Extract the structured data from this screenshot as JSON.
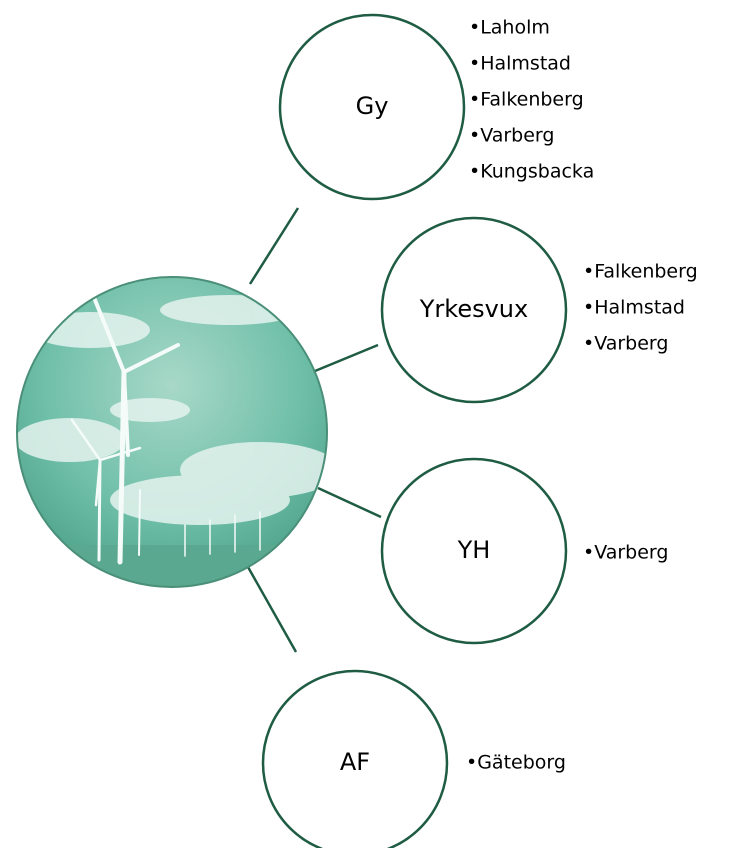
{
  "nodes": [
    {
      "label": "Gy",
      "items": [
        "•Laholm",
        "•Halmstad",
        "•Falkenberg",
        "•Varberg",
        "•Kungsbacka"
      ]
    },
    {
      "label": "Yrkesvux",
      "items": [
        "•Falkenberg",
        "•Halmstad",
        "•Varberg"
      ]
    },
    {
      "label": "YH",
      "items": [
        "•Varberg"
      ]
    },
    {
      "label": "AF",
      "items": [
        "•Gäteborg"
      ]
    }
  ]
}
